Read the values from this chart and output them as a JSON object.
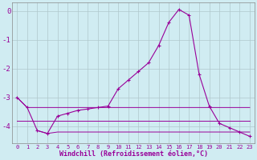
{
  "x": [
    0,
    1,
    2,
    3,
    4,
    5,
    6,
    7,
    8,
    9,
    10,
    11,
    12,
    13,
    14,
    15,
    16,
    17,
    18,
    19,
    20,
    21,
    22,
    23
  ],
  "line1": [
    -3.0,
    -3.35,
    -3.35,
    -3.35,
    -3.35,
    -3.35,
    -3.35,
    -3.35,
    -3.35,
    -3.35,
    -3.35,
    -3.35,
    -3.35,
    -3.35,
    -3.35,
    -3.35,
    -3.35,
    -3.35,
    -3.35,
    -3.35,
    -3.35,
    -3.35,
    -3.35,
    -3.35
  ],
  "line2": [
    -3.8,
    -3.8,
    -3.8,
    -3.8,
    -3.8,
    -3.8,
    -3.8,
    -3.8,
    -3.8,
    -3.8,
    -3.8,
    -3.8,
    -3.8,
    -3.8,
    -3.8,
    -3.8,
    -3.8,
    -3.8,
    -3.8,
    -3.8,
    -3.8,
    -3.8,
    -3.8,
    -3.8
  ],
  "line3": [
    null,
    null,
    -4.15,
    -4.25,
    -4.2,
    -4.2,
    -4.2,
    -4.2,
    -4.2,
    -4.2,
    -4.2,
    -4.2,
    -4.2,
    -4.2,
    -4.2,
    -4.2,
    -4.2,
    -4.2,
    -4.2,
    -4.2,
    -4.2,
    -4.2,
    -4.2,
    -4.2
  ],
  "main_line": [
    -3.0,
    -3.35,
    -4.15,
    -4.25,
    -3.65,
    -3.55,
    -3.45,
    -3.4,
    -3.35,
    -3.3,
    -2.7,
    -2.4,
    -2.1,
    -1.8,
    -1.2,
    -0.4,
    0.05,
    -0.15,
    -2.2,
    -3.3,
    -3.9,
    -4.05,
    -4.2,
    -4.35
  ],
  "background_color": "#d0ecf2",
  "line_color": "#990099",
  "grid_color": "#b0c8cc",
  "ylim": [
    -4.6,
    0.3
  ],
  "yticks": [
    0,
    -1,
    -2,
    -3,
    -4
  ],
  "xlabel": "Windchill (Refroidissement éolien,°C)",
  "title": ""
}
